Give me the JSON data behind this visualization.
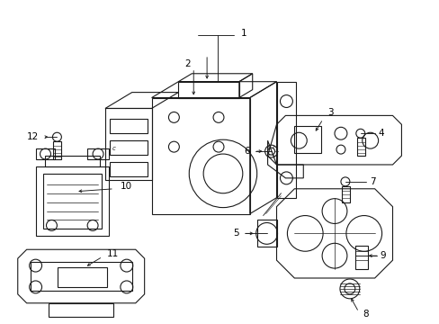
{
  "bg_color": "#ffffff",
  "line_color": "#1a1a1a",
  "fig_width": 4.89,
  "fig_height": 3.6,
  "dpi": 100,
  "label_fontsize": 7.5,
  "lw": 0.8
}
